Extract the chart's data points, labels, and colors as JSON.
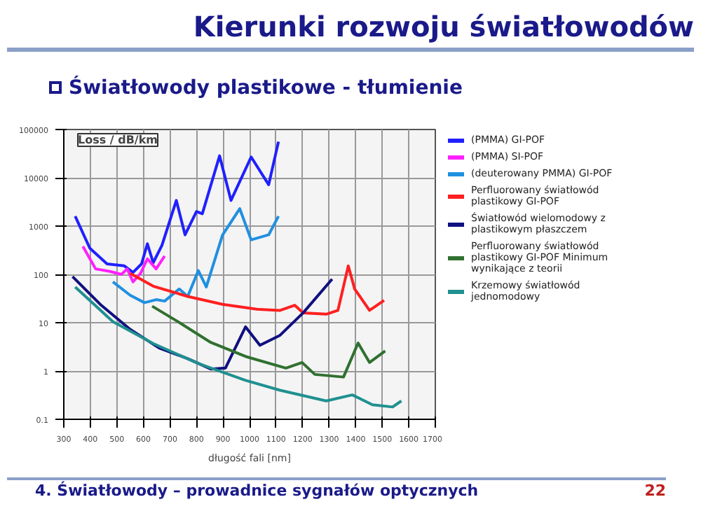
{
  "chart_data": {
    "type": "line",
    "title": "Kierunki rozwoju światłowodów",
    "subtitle": "Światłowody plastikowe - tłumienie",
    "ylabel": "Loss / dB/km",
    "xlabel": "długość fali [nm]",
    "annotations": [
      "4. Światłowody – prowadnice sygnałów optycznych",
      "22"
    ],
    "log": "y",
    "grid": true,
    "legend": "right",
    "marker": "none",
    "line_style": "solid",
    "xlim": [
      300,
      1700
    ],
    "xticks": [
      300,
      400,
      500,
      600,
      700,
      800,
      900,
      1000,
      1100,
      1200,
      1300,
      1400,
      1500,
      1600,
      1700
    ],
    "ylim": [
      0.1,
      100000
    ],
    "yticks": [
      0.1,
      1,
      10,
      100,
      1000,
      10000,
      100000
    ],
    "series": [
      {
        "name": "(PMMA) GI-POF",
        "color": "#2020ff",
        "x": [
          343,
          398,
          463,
          528,
          561,
          593,
          615,
          637,
          670,
          724,
          757,
          800,
          822,
          887,
          930,
          1006,
          1072,
          1109
        ],
        "values": [
          1600,
          350,
          165,
          150,
          110,
          165,
          430,
          175,
          400,
          3400,
          660,
          2000,
          1800,
          28500,
          3400,
          27000,
          7200,
          56000
        ]
      },
      {
        "name": "(PMMA) SI-POF",
        "color": "#ff20ff",
        "x": [
          372,
          420,
          474,
          517,
          539,
          561,
          589,
          615,
          648,
          680
        ],
        "values": [
          380,
          130,
          115,
          100,
          130,
          70,
          105,
          210,
          130,
          240
        ]
      },
      {
        "name": "(deuterowany PMMA) GI-POF",
        "color": "#2090e0",
        "x": [
          485,
          550,
          604,
          648,
          680,
          735,
          767,
          807,
          837,
          898,
          963,
          1006,
          1072,
          1109
        ],
        "values": [
          70,
          37,
          26,
          30,
          28,
          50,
          35,
          120,
          55,
          650,
          2300,
          520,
          660,
          1600
        ]
      },
      {
        "name": "Perfluorowany światłowód plastikowy GI-POF",
        "color": "#ff2020",
        "x": [
          550,
          637,
          767,
          898,
          1028,
          1115,
          1170,
          1202,
          1289,
          1333,
          1372,
          1396,
          1452,
          1507
        ],
        "values": [
          105,
          57,
          35,
          24,
          19,
          18,
          23,
          16,
          15,
          18,
          150,
          50,
          18,
          29
        ]
      },
      {
        "name": "Światłowód wielomodowy z plastikowym płaszczem",
        "color": "#101080",
        "x": [
          333,
          441,
          550,
          659,
          767,
          854,
          909,
          985,
          1039,
          1115,
          1202,
          1311
        ],
        "values": [
          90,
          23,
          7.3,
          3,
          1.8,
          1.1,
          1.15,
          8.2,
          3.4,
          5.5,
          16,
          80
        ]
      },
      {
        "name": "Perfluorowany światłowód plastikowy GI-POF Minimum wynikające z teorii",
        "color": "#307030",
        "x": [
          633,
          724,
          854,
          985,
          1137,
          1198,
          1246,
          1354,
          1409,
          1452,
          1511
        ],
        "values": [
          22,
          11,
          3.9,
          2,
          1.15,
          1.5,
          0.85,
          0.75,
          3.8,
          1.5,
          2.6
        ]
      },
      {
        "name": "Krzemowy światłowód jednomodowy",
        "color": "#209090",
        "x": [
          343,
          485,
          637,
          811,
          985,
          1115,
          1289,
          1387,
          1463,
          1539,
          1572
        ],
        "values": [
          55,
          10.5,
          3.7,
          1.4,
          0.64,
          0.4,
          0.24,
          0.32,
          0.2,
          0.18,
          0.24
        ]
      }
    ]
  }
}
